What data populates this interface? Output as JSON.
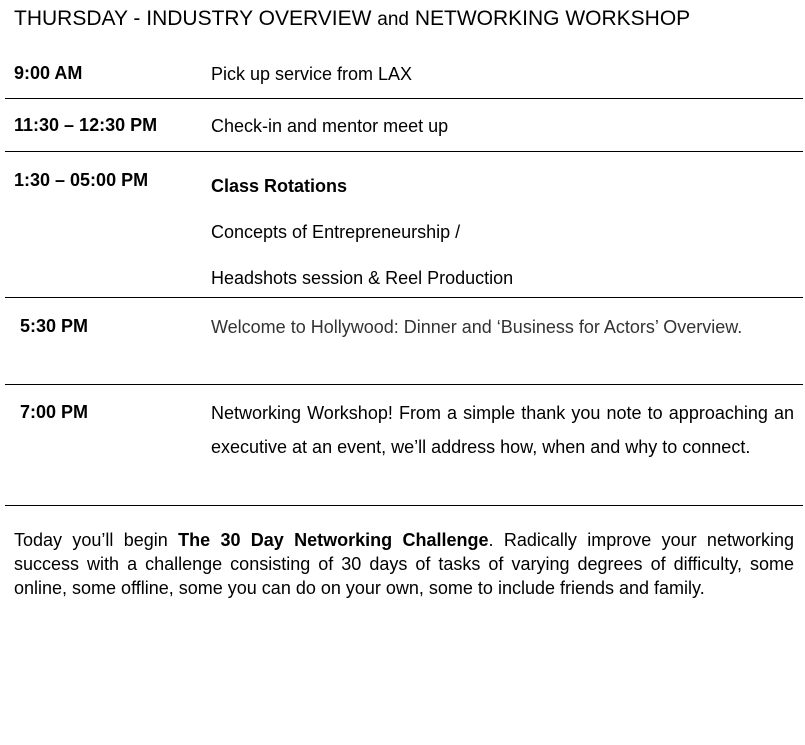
{
  "title": {
    "part1": "THURSDAY - INDUSTRY OVERVIEW",
    "part2": "and",
    "part3": "NETWORKING WORKSHOP"
  },
  "schedule": [
    {
      "time": "9:00 AM",
      "lines": [
        "Pick up service from LAX"
      ]
    },
    {
      "time": "11:30 – 12:30 PM",
      "lines": [
        "Check-in and mentor meet up"
      ]
    },
    {
      "time": "1:30 – 05:00 PM",
      "heading": "Class Rotations",
      "lines": [
        "Concepts of Entrepreneurship /",
        "Headshots session & Reel Production"
      ]
    },
    {
      "time": "5:30 PM",
      "text": "Welcome to Hollywood: Dinner and ‘Business for Actors’ Overview."
    },
    {
      "time": "7:00 PM",
      "text": "Networking Workshop! From a simple thank you note to approaching an executive at an event, we’ll address how, when and why to connect."
    }
  ],
  "challenge": {
    "intro": "Today you’ll begin",
    "name": "The 30 Day Networking Challenge",
    "rest": ". Radically improve your networking success with a challenge consisting of 30 days of tasks of varying degrees of difficulty, some online, some offline, some you can do on your own, some to include friends and family."
  }
}
